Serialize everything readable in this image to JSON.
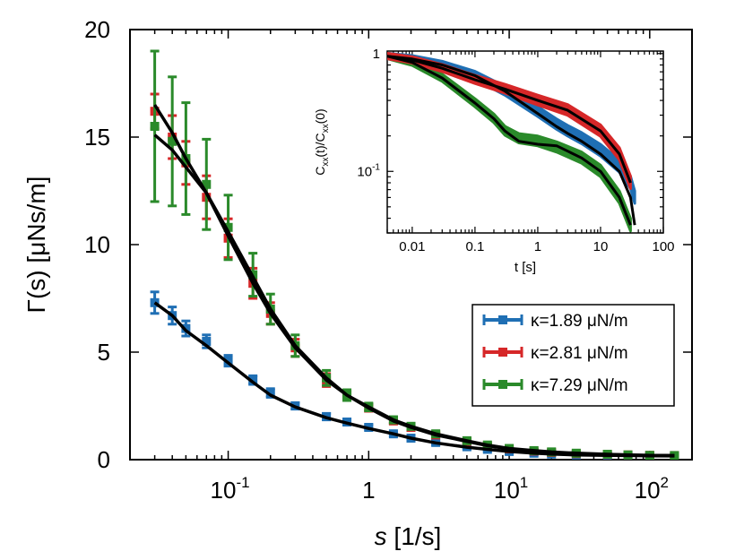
{
  "chart_data": [
    {
      "type": "scatter",
      "role": "main",
      "xscale": "log",
      "xlim": [
        0.02,
        200
      ],
      "ylim": [
        0,
        20
      ],
      "xlabel_sym": "s",
      "xlabel_unit": "[1/s]",
      "ylabel": "Γ(s) [μNs/m]",
      "yticks": [
        "0",
        "5",
        "10",
        "15",
        "20"
      ],
      "xticks": [
        {
          "value": 0.1,
          "base": "10",
          "exp": "-1"
        },
        {
          "value": 1,
          "base": "1",
          "exp": ""
        },
        {
          "value": 10,
          "base": "10",
          "exp": "1"
        },
        {
          "value": 100,
          "base": "10",
          "exp": "2"
        }
      ],
      "legend_position": "center-right",
      "series": [
        {
          "name": "κ=1.89 μN/m",
          "color": "#1f6fb4",
          "x": [
            0.03,
            0.04,
            0.05,
            0.07,
            0.1,
            0.15,
            0.2,
            0.3,
            0.5,
            0.7,
            1,
            1.5,
            2,
            3,
            5,
            7,
            10,
            15,
            20,
            30,
            50,
            70,
            100,
            150
          ],
          "y": [
            7.3,
            6.7,
            6.1,
            5.5,
            4.6,
            3.7,
            3.1,
            2.5,
            2.0,
            1.75,
            1.5,
            1.2,
            1.0,
            0.8,
            0.6,
            0.48,
            0.38,
            0.3,
            0.26,
            0.22,
            0.2,
            0.19,
            0.18,
            0.17
          ],
          "err": [
            0.5,
            0.4,
            0.35,
            0.3,
            0.25,
            0.2,
            0.2,
            0.15,
            0.15,
            0.12,
            0.12,
            0.1,
            0.1,
            0.08,
            0.08,
            0.07,
            0.07,
            0.06,
            0.06,
            0.06,
            0.06,
            0.06,
            0.06,
            0.06
          ],
          "fit": [
            7.3,
            6.7,
            6.0,
            5.3,
            4.5,
            3.6,
            3.0,
            2.45,
            1.95,
            1.7,
            1.45,
            1.2,
            1.0,
            0.78,
            0.58,
            0.48,
            0.38,
            0.3,
            0.26,
            0.22,
            0.2,
            0.19,
            0.18,
            0.17
          ]
        },
        {
          "name": "κ=2.81 μN/m",
          "color": "#d62728",
          "x": [
            0.03,
            0.04,
            0.05,
            0.07,
            0.1,
            0.15,
            0.2,
            0.3,
            0.5,
            0.7,
            1,
            1.5,
            2,
            3,
            5,
            7,
            10,
            15,
            20,
            30,
            50,
            70,
            100,
            150
          ],
          "y": [
            16.2,
            15.0,
            13.8,
            12.2,
            10.3,
            8.2,
            6.8,
            5.2,
            3.7,
            3.0,
            2.4,
            1.8,
            1.5,
            1.15,
            0.85,
            0.65,
            0.5,
            0.4,
            0.34,
            0.28,
            0.24,
            0.22,
            0.2,
            0.19
          ],
          "err": [
            0.8,
            1.0,
            1.0,
            1.0,
            0.9,
            0.7,
            0.5,
            0.4,
            0.3,
            0.2,
            0.15,
            0.12,
            0.1,
            0.08,
            0.07,
            0.07,
            0.06,
            0.06,
            0.06,
            0.06,
            0.06,
            0.06,
            0.06,
            0.06
          ],
          "fit": [
            16.5,
            15.2,
            14.0,
            12.4,
            10.4,
            8.2,
            6.8,
            5.2,
            3.7,
            3.0,
            2.4,
            1.8,
            1.5,
            1.15,
            0.85,
            0.65,
            0.5,
            0.4,
            0.34,
            0.28,
            0.24,
            0.22,
            0.2,
            0.19
          ]
        },
        {
          "name": "κ=7.29 μN/m",
          "color": "#2a8a2a",
          "x": [
            0.03,
            0.04,
            0.05,
            0.07,
            0.1,
            0.15,
            0.2,
            0.3,
            0.5,
            0.7,
            1,
            1.5,
            2,
            3,
            5,
            7,
            10,
            15,
            20,
            30,
            50,
            70,
            100,
            150
          ],
          "y": [
            15.5,
            14.8,
            14.0,
            12.8,
            10.8,
            8.6,
            7.0,
            5.3,
            3.8,
            3.0,
            2.45,
            1.85,
            1.55,
            1.2,
            0.88,
            0.68,
            0.52,
            0.42,
            0.36,
            0.3,
            0.25,
            0.22,
            0.2,
            0.19
          ],
          "err": [
            3.5,
            3.0,
            2.6,
            2.1,
            1.5,
            1.0,
            0.7,
            0.5,
            0.35,
            0.25,
            0.18,
            0.14,
            0.12,
            0.1,
            0.08,
            0.07,
            0.06,
            0.06,
            0.06,
            0.06,
            0.06,
            0.06,
            0.06,
            0.06
          ],
          "fit": [
            15.1,
            14.4,
            13.6,
            12.4,
            10.6,
            8.5,
            7.0,
            5.3,
            3.8,
            3.0,
            2.45,
            1.85,
            1.55,
            1.2,
            0.88,
            0.68,
            0.52,
            0.42,
            0.36,
            0.3,
            0.25,
            0.22,
            0.2,
            0.19
          ]
        }
      ]
    },
    {
      "type": "line",
      "role": "inset",
      "xscale": "log",
      "yscale": "log",
      "xlim": [
        0.004,
        100
      ],
      "ylim": [
        0.03,
        1.05
      ],
      "xlabel": "t [s]",
      "ylabel_parts": [
        "C",
        "xx",
        "(t)/C",
        "xx",
        "(0)"
      ],
      "xticks": [
        {
          "value": 0.01,
          "label": "0.01"
        },
        {
          "value": 0.1,
          "label": "0.1"
        },
        {
          "value": 1,
          "label": "1"
        },
        {
          "value": 10,
          "label": "10"
        },
        {
          "value": 100,
          "label": "100"
        }
      ],
      "yticks": [
        {
          "value": 1,
          "base": "1",
          "exp": ""
        },
        {
          "value": 0.1,
          "base": "10",
          "exp": "-1"
        }
      ],
      "series": [
        {
          "name": "κ=1.89 μN/m",
          "color": "#1f6fb4",
          "t": [
            0.004,
            0.01,
            0.03,
            0.1,
            0.3,
            1,
            2,
            3,
            5,
            10,
            20,
            30,
            35
          ],
          "c": [
            0.95,
            0.9,
            0.8,
            0.65,
            0.48,
            0.32,
            0.25,
            0.22,
            0.19,
            0.15,
            0.11,
            0.08,
            0.06
          ],
          "fit": [
            0.95,
            0.9,
            0.8,
            0.65,
            0.48,
            0.31,
            0.24,
            0.21,
            0.18,
            0.14,
            0.1,
            0.06,
            0.035
          ]
        },
        {
          "name": "κ=2.81 μN/m",
          "color": "#d62728",
          "t": [
            0.004,
            0.01,
            0.03,
            0.1,
            0.3,
            1,
            3,
            10,
            20,
            30
          ],
          "c": [
            0.95,
            0.88,
            0.75,
            0.6,
            0.5,
            0.4,
            0.33,
            0.22,
            0.14,
            0.08
          ],
          "fit": [
            0.95,
            0.88,
            0.75,
            0.6,
            0.5,
            0.4,
            0.33,
            0.22,
            0.14,
            0.08
          ]
        },
        {
          "name": "κ=7.29 μN/m",
          "color": "#2a8a2a",
          "t": [
            0.004,
            0.01,
            0.03,
            0.1,
            0.2,
            0.3,
            0.5,
            1,
            2,
            5,
            10,
            20,
            30
          ],
          "c": [
            0.95,
            0.84,
            0.62,
            0.38,
            0.28,
            0.22,
            0.19,
            0.18,
            0.16,
            0.13,
            0.1,
            0.06,
            0.035
          ],
          "fit": [
            0.95,
            0.84,
            0.62,
            0.38,
            0.28,
            0.22,
            0.18,
            0.17,
            0.165,
            0.13,
            0.1,
            0.06,
            0.035
          ]
        }
      ]
    }
  ]
}
